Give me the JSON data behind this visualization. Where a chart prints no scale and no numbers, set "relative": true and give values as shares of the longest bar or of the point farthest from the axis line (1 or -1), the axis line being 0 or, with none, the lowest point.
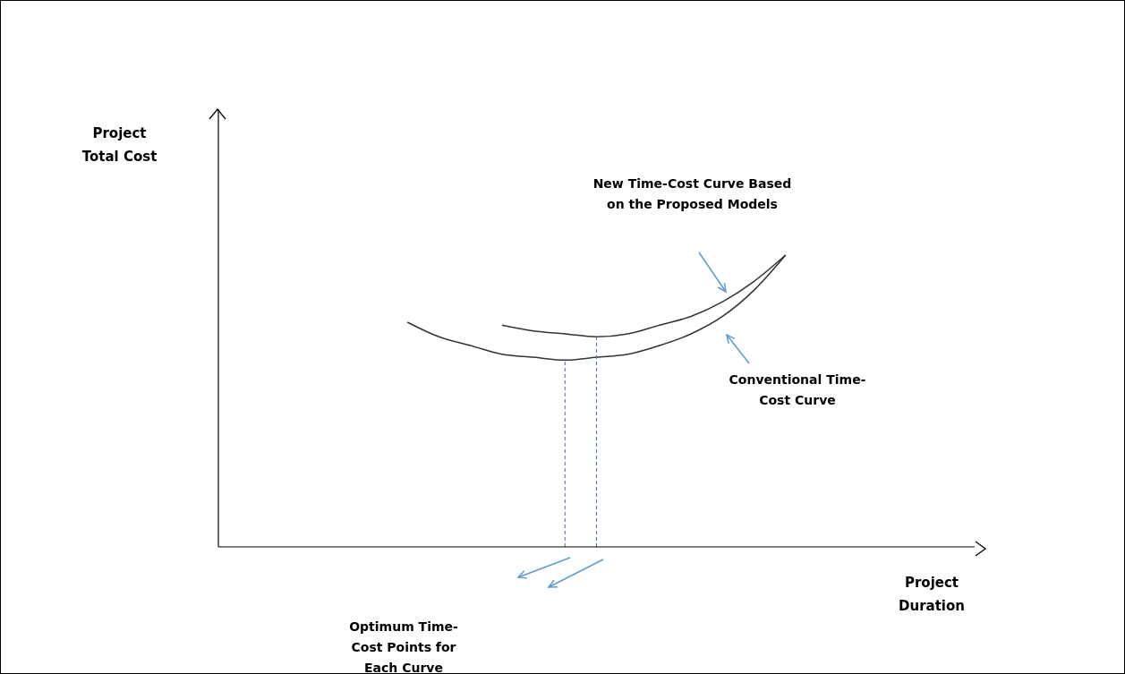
{
  "chart_data": {
    "type": "line",
    "relative": true,
    "xlabel": "Project Duration",
    "marker": "none",
    "line_style": "solid",
    "legend": false,
    "grid": false,
    "categories": [
      null,
      null,
      null,
      null,
      null,
      null,
      null,
      null,
      null,
      null,
      null,
      null,
      null,
      null,
      null,
      null,
      null,
      null,
      null,
      null,
      null,
      null,
      null,
      null,
      null
    ],
    "series": [
      {
        "color": "#333333",
        "values": [
          null,
          null,
          null,
          null,
          null,
          null,
          0.77,
          0.72,
          0.69,
          0.66,
          0.65,
          0.64,
          0.65,
          0.66,
          0.69,
          0.73,
          0.79,
          0.88,
          1,
          null,
          null,
          null,
          null,
          null,
          null
        ]
      },
      {
        "color": "#333333",
        "values": [
          null,
          null,
          null,
          null,
          null,
          null,
          null,
          null,
          null,
          0.76,
          0.74,
          0.73,
          0.72,
          0.73,
          0.76,
          0.79,
          0.84,
          0.91,
          1,
          null,
          null,
          null,
          null,
          null,
          null
        ]
      }
    ],
    "annotations": [
      "Project Total Cost",
      "New Time-Cost Curve Based on the Proposed Models",
      "Conventional Time-Cost Curve",
      "Optimum Time-Cost Points for Each Curve"
    ]
  }
}
